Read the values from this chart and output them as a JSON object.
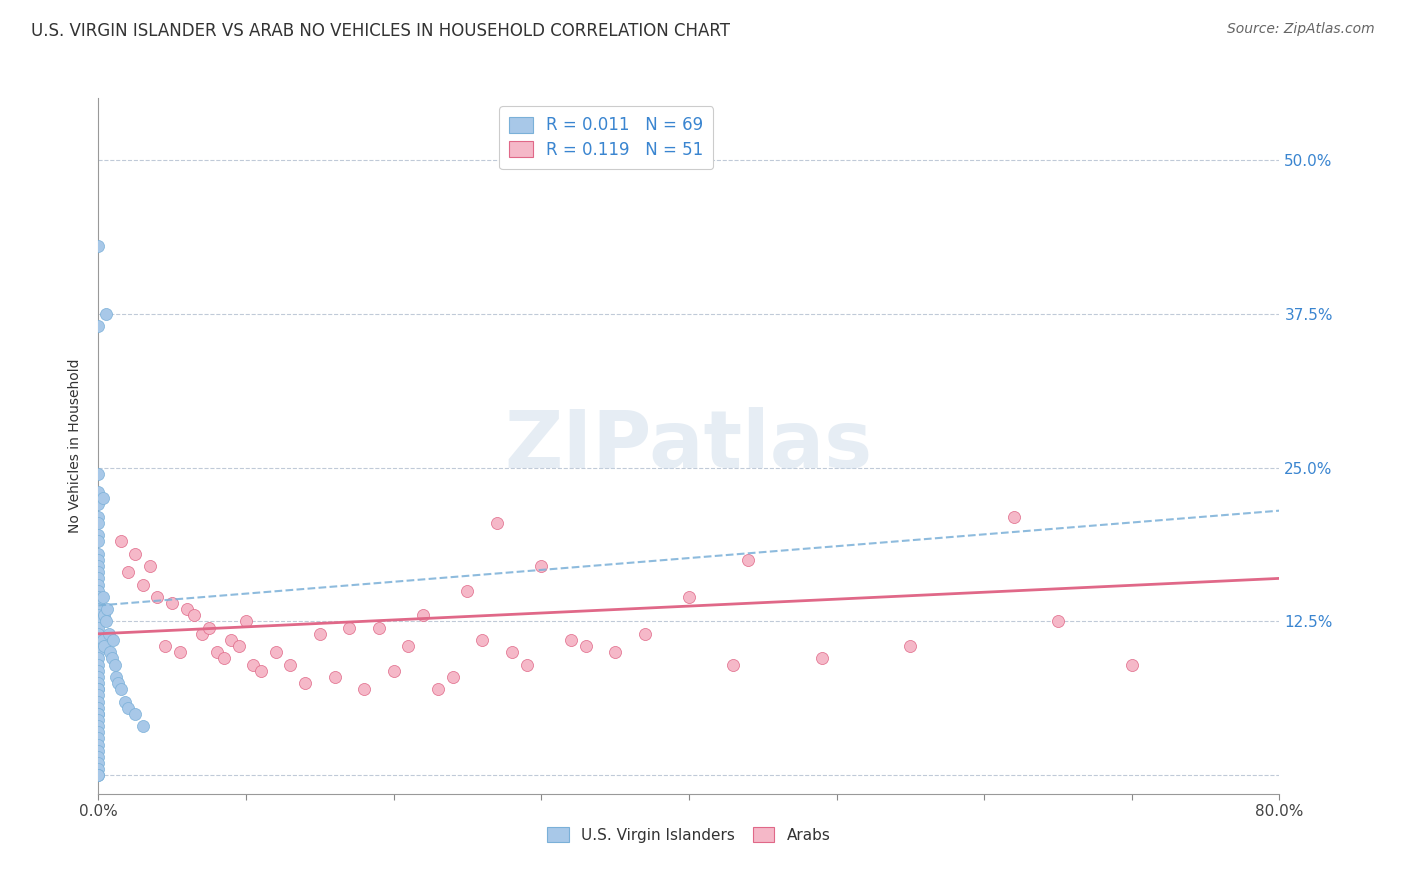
{
  "title": "U.S. VIRGIN ISLANDER VS ARAB NO VEHICLES IN HOUSEHOLD CORRELATION CHART",
  "source": "Source: ZipAtlas.com",
  "ylabel": "No Vehicles in Household",
  "xlim": [
    0.0,
    80.0
  ],
  "ylim": [
    -1.5,
    55.0
  ],
  "yticks": [
    0.0,
    12.5,
    25.0,
    37.5,
    50.0
  ],
  "xticks": [
    0.0,
    10.0,
    20.0,
    30.0,
    40.0,
    50.0,
    60.0,
    70.0,
    80.0
  ],
  "r_vi": 0.011,
  "n_vi": 69,
  "r_arab": 0.119,
  "n_arab": 51,
  "color_vi": "#a8c8e8",
  "color_vi_edge": "#7ab0d8",
  "color_vi_line": "#7ab0d8",
  "color_arab": "#f5b8c8",
  "color_arab_edge": "#e06888",
  "color_arab_line": "#e06888",
  "color_rtext": "#3a85d0",
  "color_ntext": "#e05090",
  "vi_trend_x": [
    0.0,
    80.0
  ],
  "vi_trend_y": [
    13.8,
    21.5
  ],
  "arab_trend_x": [
    0.0,
    80.0
  ],
  "arab_trend_y": [
    11.5,
    16.0
  ],
  "vi_x": [
    0.0,
    0.0,
    0.0,
    0.0,
    0.0,
    0.0,
    0.0,
    0.0,
    0.0,
    0.0,
    0.0,
    0.0,
    0.0,
    0.0,
    0.0,
    0.0,
    0.0,
    0.0,
    0.0,
    0.0,
    0.0,
    0.0,
    0.0,
    0.0,
    0.0,
    0.0,
    0.0,
    0.0,
    0.0,
    0.0,
    0.0,
    0.0,
    0.0,
    0.0,
    0.0,
    0.0,
    0.0,
    0.0,
    0.0,
    0.0,
    0.0,
    0.0,
    0.0,
    0.0,
    0.0,
    0.0,
    0.0,
    0.0,
    0.0,
    0.3,
    0.3,
    0.3,
    0.4,
    0.4,
    0.5,
    0.5,
    0.6,
    0.7,
    0.8,
    0.9,
    1.0,
    1.1,
    1.2,
    1.3,
    1.5,
    1.8,
    2.0,
    2.5,
    3.0
  ],
  "vi_y": [
    43.0,
    36.5,
    24.5,
    23.0,
    22.0,
    21.0,
    20.5,
    19.5,
    19.0,
    18.0,
    17.5,
    17.0,
    16.5,
    16.0,
    15.5,
    15.0,
    14.5,
    14.0,
    13.5,
    13.0,
    12.5,
    12.0,
    11.5,
    11.0,
    10.5,
    10.0,
    9.5,
    9.0,
    8.5,
    8.0,
    7.5,
    7.0,
    7.0,
    6.5,
    6.0,
    5.5,
    5.0,
    5.0,
    4.5,
    4.0,
    3.5,
    3.0,
    2.5,
    2.0,
    1.5,
    1.0,
    0.5,
    0.0,
    0.0,
    22.5,
    14.5,
    11.0,
    10.5,
    13.0,
    37.5,
    12.5,
    13.5,
    11.5,
    10.0,
    9.5,
    11.0,
    9.0,
    8.0,
    7.5,
    7.0,
    6.0,
    5.5,
    5.0,
    4.0
  ],
  "arab_x": [
    1.5,
    2.0,
    2.5,
    3.0,
    3.5,
    4.0,
    4.5,
    5.0,
    5.5,
    6.0,
    6.5,
    7.0,
    7.5,
    8.0,
    8.5,
    9.0,
    9.5,
    10.0,
    10.5,
    11.0,
    12.0,
    13.0,
    14.0,
    15.0,
    16.0,
    17.0,
    18.0,
    19.0,
    20.0,
    21.0,
    22.0,
    23.0,
    24.0,
    25.0,
    26.0,
    27.0,
    28.0,
    29.0,
    30.0,
    32.0,
    33.0,
    35.0,
    37.0,
    40.0,
    43.0,
    44.0,
    49.0,
    55.0,
    62.0,
    65.0,
    70.0
  ],
  "arab_y": [
    19.0,
    16.5,
    18.0,
    15.5,
    17.0,
    14.5,
    10.5,
    14.0,
    10.0,
    13.5,
    13.0,
    11.5,
    12.0,
    10.0,
    9.5,
    11.0,
    10.5,
    12.5,
    9.0,
    8.5,
    10.0,
    9.0,
    7.5,
    11.5,
    8.0,
    12.0,
    7.0,
    12.0,
    8.5,
    10.5,
    13.0,
    7.0,
    8.0,
    15.0,
    11.0,
    20.5,
    10.0,
    9.0,
    17.0,
    11.0,
    10.5,
    10.0,
    11.5,
    14.5,
    9.0,
    17.5,
    9.5,
    10.5,
    21.0,
    12.5,
    9.0
  ]
}
